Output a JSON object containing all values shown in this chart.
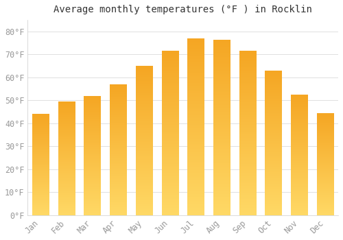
{
  "title": "Average monthly temperatures (°F ) in Rocklin",
  "months": [
    "Jan",
    "Feb",
    "Mar",
    "Apr",
    "May",
    "Jun",
    "Jul",
    "Aug",
    "Sep",
    "Oct",
    "Nov",
    "Dec"
  ],
  "values": [
    44,
    49.5,
    52,
    57,
    65,
    71.5,
    77,
    76.5,
    71.5,
    63,
    52.5,
    44.5
  ],
  "bar_color_dark": "#F5A623",
  "bar_color_light": "#FFD966",
  "background_color": "#FFFFFF",
  "grid_color": "#E0E0E0",
  "tick_label_color": "#999999",
  "title_color": "#333333",
  "ylim": [
    0,
    85
  ],
  "yticks": [
    0,
    10,
    20,
    30,
    40,
    50,
    60,
    70,
    80
  ],
  "ytick_labels": [
    "0°F",
    "10°F",
    "20°F",
    "30°F",
    "40°F",
    "50°F",
    "60°F",
    "70°F",
    "80°F"
  ],
  "title_fontsize": 10,
  "tick_fontsize": 8.5,
  "figsize": [
    5.0,
    3.5
  ],
  "dpi": 100
}
